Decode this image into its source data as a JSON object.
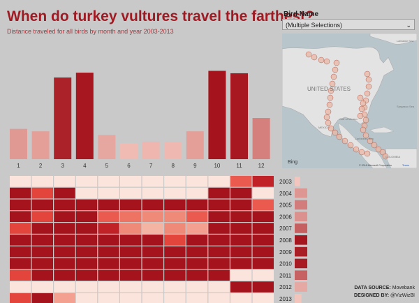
{
  "header": {
    "title": "When do turkey vultures travel the farthest?",
    "subtitle": "Distance traveled for all birds by month and year 2003-2013"
  },
  "filter": {
    "label": "Bird Name",
    "value": "(Multiple Selections)"
  },
  "map": {
    "labels": [
      "UNITED STATES",
      "MEXICO",
      "Gulf of Mexico",
      "Caribbean Sea",
      "Sargasso Sea",
      "Labrador Sea",
      "COLOMBIA"
    ],
    "bing_label": "Bing",
    "copyright": "© 2018 Microsoft Corporation",
    "terms": "Terms"
  },
  "footer": {
    "source_label": "DATA SOURCE:",
    "source_value": "Movebank",
    "designer_label": "DESIGNED BY:",
    "designer_value": "@VizWizBI"
  },
  "colors": {
    "background": "#c9c9c9",
    "title": "#9f1a22",
    "accent_dark": "#a5141c",
    "accent_light": "#f4c3ba",
    "empty_cell": "#fbe4dc"
  },
  "chart_data": [
    {
      "type": "bar",
      "categories": [
        "1",
        "2",
        "3",
        "4",
        "5",
        "6",
        "7",
        "8",
        "9",
        "10",
        "11",
        "12"
      ],
      "values": [
        50,
        46,
        135,
        143,
        40,
        26,
        29,
        28,
        46,
        146,
        142,
        68
      ],
      "ylim": [
        0,
        150
      ],
      "legend": "none"
    },
    {
      "type": "heatmap",
      "x": [
        "1",
        "2",
        "3",
        "4",
        "5",
        "6",
        "7",
        "8",
        "9",
        "10",
        "11",
        "12"
      ],
      "y": [
        "2003",
        "2004",
        "2005",
        "2006",
        "2007",
        "2008",
        "2009",
        "2010",
        "2011",
        "2012",
        "2013"
      ],
      "values": [
        [
          0,
          0,
          0,
          0,
          0,
          0,
          0,
          0,
          0,
          0,
          6,
          8
        ],
        [
          9,
          7,
          9,
          0,
          0,
          0,
          0,
          0,
          0,
          9,
          9,
          0
        ],
        [
          9,
          9,
          9,
          9,
          9,
          9,
          9,
          9,
          9,
          9,
          9,
          6
        ],
        [
          9,
          7,
          9,
          9,
          6,
          5,
          4,
          4,
          6,
          9,
          9,
          9
        ],
        [
          7,
          9,
          9,
          9,
          8,
          4,
          2,
          4,
          3,
          9,
          9,
          9
        ],
        [
          9,
          9,
          9,
          9,
          9,
          9,
          9,
          7,
          9,
          9,
          9,
          9
        ],
        [
          9,
          9,
          9,
          9,
          9,
          9,
          9,
          9,
          9,
          9,
          9,
          9
        ],
        [
          9,
          9,
          9,
          9,
          9,
          9,
          9,
          9,
          9,
          9,
          9,
          9
        ],
        [
          7,
          9,
          9,
          9,
          9,
          9,
          9,
          9,
          9,
          9,
          0,
          0
        ],
        [
          0,
          0,
          0,
          0,
          0,
          0,
          0,
          0,
          0,
          0,
          9,
          9
        ],
        [
          7,
          9,
          3,
          0,
          0,
          0,
          0,
          0,
          0,
          0,
          0,
          0
        ]
      ],
      "scale": "0 = none, 9 = highest"
    },
    {
      "type": "bar",
      "orientation": "horizontal",
      "categories": [
        "2003",
        "2004",
        "2005",
        "2006",
        "2007",
        "2008",
        "2009",
        "2010",
        "2011",
        "2012",
        "2013"
      ],
      "values": [
        4,
        25,
        36,
        27,
        49,
        81,
        78,
        79,
        48,
        17,
        5
      ],
      "xlim": [
        0,
        85
      ]
    }
  ]
}
